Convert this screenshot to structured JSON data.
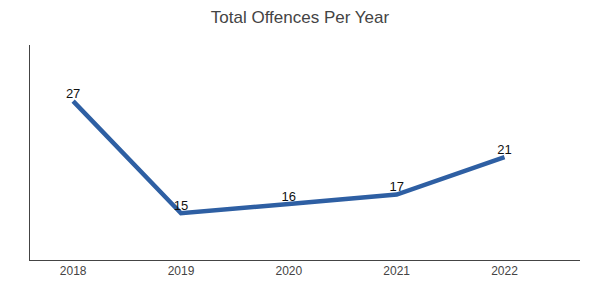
{
  "chart_data": {
    "type": "line",
    "title": "Total Offences Per Year",
    "x": [
      2018,
      2019,
      2020,
      2021,
      2022
    ],
    "values": [
      27,
      15,
      16,
      17,
      21
    ],
    "color": "#2e5fa3",
    "xlim": [
      2017.6,
      2022.7
    ],
    "xticks": [
      2018,
      2019,
      2020,
      2021,
      2022
    ],
    "ylim": [
      10,
      33
    ],
    "grid": false,
    "data_labels": true,
    "tick_labels": "x"
  }
}
